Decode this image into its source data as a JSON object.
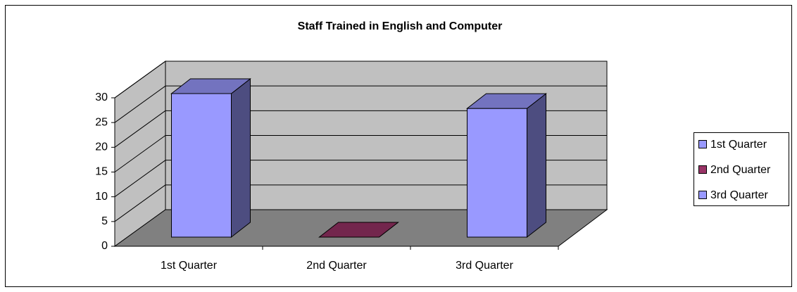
{
  "chart_data": {
    "type": "bar",
    "title": "Staff Trained in English and Computer",
    "categories": [
      "1st Quarter",
      "2nd Quarter",
      "3rd Quarter"
    ],
    "values": [
      29,
      0,
      26
    ],
    "colors": [
      "#9999ff",
      "#993366",
      "#9999ff"
    ],
    "ylim": [
      0,
      30
    ],
    "yticks": [
      0,
      5,
      10,
      15,
      20,
      25,
      30
    ],
    "grid": true,
    "legend": "right"
  }
}
